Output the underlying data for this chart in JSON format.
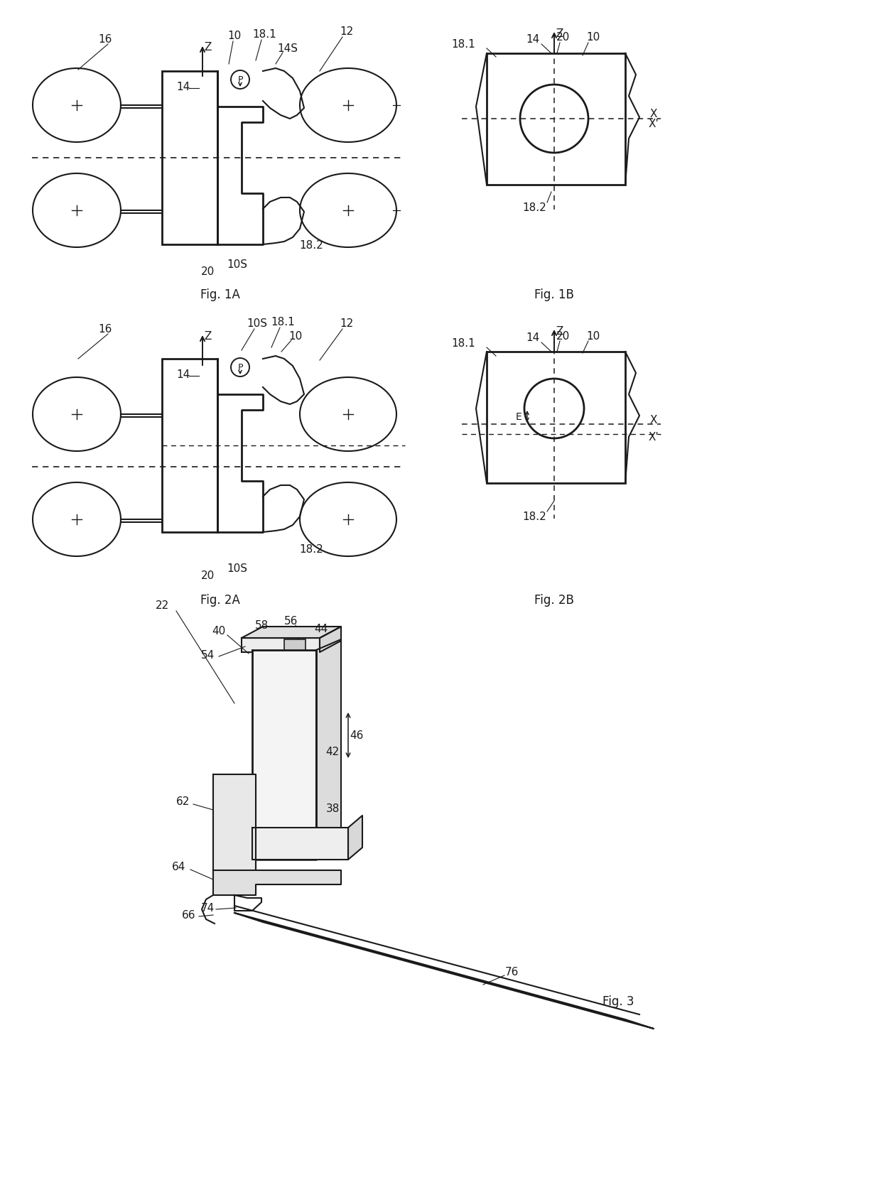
{
  "fig_width": 12.4,
  "fig_height": 16.92,
  "bg_color": "#ffffff",
  "line_color": "#1a1a1a",
  "lw_main": 1.5,
  "lw_thick": 2.0,
  "lw_thin": 1.0,
  "fs_label": 11,
  "fs_fig": 12,
  "fig1a_label": "Fig. 1A",
  "fig1b_label": "Fig. 1B",
  "fig2a_label": "Fig. 2A",
  "fig2b_label": "Fig. 2B",
  "fig3_label": "Fig. 3"
}
